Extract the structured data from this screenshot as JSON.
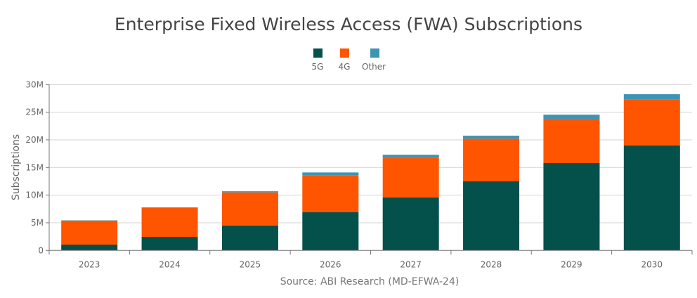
{
  "chart_data": {
    "type": "bar",
    "stacked": true,
    "title": "Enterprise Fixed Wireless Access (FWA) Subscriptions",
    "ylabel": "Subscriptions",
    "xlabel": "",
    "source": "Source: ABI Research (MD-EFWA-24)",
    "categories": [
      "2023",
      "2024",
      "2025",
      "2026",
      "2027",
      "2028",
      "2029",
      "2030"
    ],
    "ylim": [
      0,
      30
    ],
    "yticks": [
      0,
      5,
      10,
      15,
      20,
      25,
      30
    ],
    "ytick_labels": [
      "0",
      "5M",
      "10M",
      "15M",
      "20M",
      "25M",
      "30M"
    ],
    "unit": "millions",
    "grid": true,
    "legend_position": "top",
    "series": [
      {
        "name": "5G",
        "color": "#04504b",
        "values": [
          1.05,
          2.45,
          4.5,
          6.9,
          9.6,
          12.5,
          15.8,
          19.0
        ]
      },
      {
        "name": "4G",
        "color": "#ff5500",
        "values": [
          4.35,
          5.25,
          6.0,
          6.7,
          7.2,
          7.7,
          8.0,
          8.35
        ]
      },
      {
        "name": "Other",
        "color": "#3d94b3",
        "values": [
          0.05,
          0.1,
          0.2,
          0.5,
          0.5,
          0.55,
          0.75,
          0.9
        ]
      }
    ]
  }
}
